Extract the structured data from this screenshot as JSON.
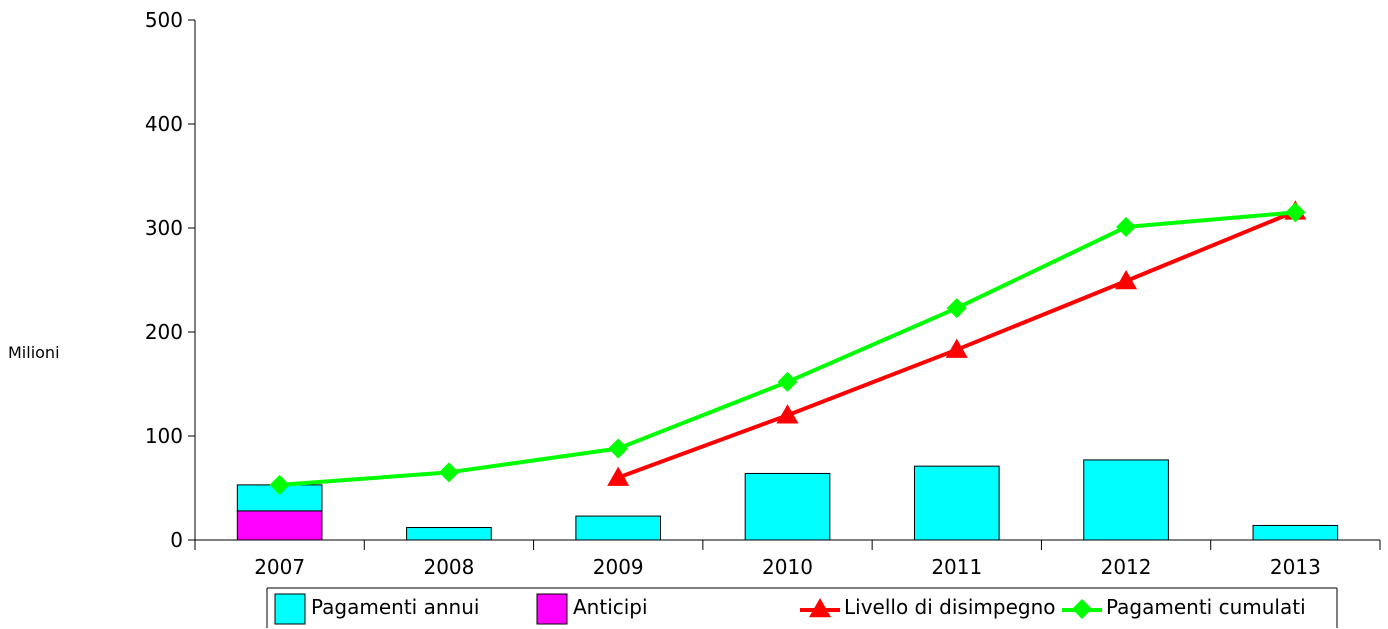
{
  "chart_data": {
    "type": "bar",
    "title": "",
    "xlabel": "",
    "ylabel": "Milioni",
    "ylim": [
      0,
      500
    ],
    "yticks": [
      0,
      100,
      200,
      300,
      400,
      500
    ],
    "categories": [
      "2007",
      "2008",
      "2009",
      "2010",
      "2011",
      "2012",
      "2013"
    ],
    "grid": false,
    "legend_position": "bottom",
    "bar_series": [
      {
        "name": "Anticipi",
        "color": "#ff00ff",
        "values": [
          28,
          0,
          0,
          0,
          0,
          0,
          0
        ]
      },
      {
        "name": "Pagamenti annui",
        "color": "#00ffff",
        "values": [
          25,
          12,
          23,
          64,
          71,
          77,
          14
        ]
      }
    ],
    "line_series": [
      {
        "name": "Livello di disimpegno",
        "color": "#ff0000",
        "marker": "triangle",
        "values": [
          null,
          null,
          60,
          120,
          183,
          249,
          316
        ]
      },
      {
        "name": "Pagamenti cumulati",
        "color": "#00ff00",
        "marker": "diamond",
        "values": [
          53,
          65,
          88,
          152,
          223,
          301,
          315
        ]
      }
    ],
    "legend": [
      "Pagamenti annui",
      "Anticipi",
      "Livello di disimpegno",
      "Pagamenti cumulati"
    ]
  }
}
